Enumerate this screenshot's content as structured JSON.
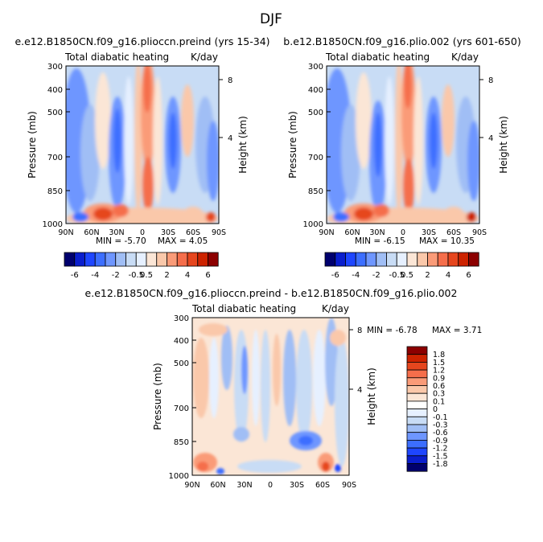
{
  "figure": {
    "title": "DJF"
  },
  "chart_data": [
    {
      "type": "heatmap",
      "title": "e.e12.B1850CN.f09_g16.plioccn.preind (yrs 15-34)",
      "field_label": "Total diabatic heating",
      "units": "K/day",
      "xlabel": "",
      "ylabel": "Pressure (mb)",
      "right_axis_label": "Height (km)",
      "x_ticks": [
        "90N",
        "60N",
        "30N",
        "0",
        "30S",
        "60S",
        "90S"
      ],
      "y_ticks": [
        "300",
        "400",
        "500",
        "700",
        "850",
        "1000"
      ],
      "right_ticks": [
        "8",
        "4"
      ],
      "xlim": [
        90,
        -90
      ],
      "ylim": [
        1000,
        300
      ],
      "min_text": "MIN = -5.70",
      "max_text": "MAX = 4.05",
      "min": -5.7,
      "max": 4.05
    },
    {
      "type": "heatmap",
      "title": "b.e12.B1850CN.f09_g16.plio.002 (yrs 601-650)",
      "field_label": "Total diabatic heating",
      "units": "K/day",
      "xlabel": "",
      "ylabel": "Pressure (mb)",
      "right_axis_label": "Height (km)",
      "x_ticks": [
        "90N",
        "60N",
        "30N",
        "0",
        "30S",
        "60S",
        "90S"
      ],
      "y_ticks": [
        "300",
        "400",
        "500",
        "700",
        "850",
        "1000"
      ],
      "right_ticks": [
        "8",
        "4"
      ],
      "xlim": [
        90,
        -90
      ],
      "ylim": [
        1000,
        300
      ],
      "min_text": "MIN = -6.15",
      "max_text": "MAX = 10.35",
      "min": -6.15,
      "max": 10.35
    },
    {
      "type": "heatmap",
      "title": "e.e12.B1850CN.f09_g16.plioccn.preind - b.e12.B1850CN.f09_g16.plio.002",
      "field_label": "Total diabatic heating",
      "units": "K/day",
      "xlabel": "",
      "ylabel": "Pressure (mb)",
      "right_axis_label": "Height (km)",
      "x_ticks": [
        "90N",
        "60N",
        "30N",
        "0",
        "30S",
        "60S",
        "90S"
      ],
      "y_ticks": [
        "300",
        "400",
        "500",
        "700",
        "850",
        "1000"
      ],
      "right_ticks": [
        "8",
        "4"
      ],
      "xlim": [
        90,
        -90
      ],
      "ylim": [
        1000,
        300
      ],
      "min_text": "MIN = -6.78",
      "max_text": "MAX = 3.71",
      "min": -6.78,
      "max": 3.71
    }
  ],
  "colorbar_top": {
    "labels": [
      "-6",
      "-4",
      "-2",
      "-0.5",
      "0.5",
      "2",
      "4",
      "6"
    ],
    "colors": [
      "#00006e",
      "#0a1ecd",
      "#1e46ff",
      "#3c6eff",
      "#6e96ff",
      "#a0bef5",
      "#c8dcf5",
      "#e6f0ff",
      "#fbe6d6",
      "#fac8aa",
      "#fa9b78",
      "#f56e4b",
      "#e6461e",
      "#cd2300",
      "#8c0000"
    ]
  },
  "colorbar_diff": {
    "labels": [
      "1.8",
      "1.5",
      "1.2",
      "0.9",
      "0.6",
      "0.3",
      "0.1",
      "0",
      "-0.1",
      "-0.3",
      "-0.6",
      "-0.9",
      "-1.2",
      "-1.5",
      "-1.8"
    ],
    "colors": [
      "#8c0000",
      "#cd2300",
      "#e6461e",
      "#f56e4b",
      "#fa9b78",
      "#fac8aa",
      "#fbe6d6",
      "#ffffff",
      "#e6f0ff",
      "#c8dcf5",
      "#a0bef5",
      "#6e96ff",
      "#3c6eff",
      "#1e46ff",
      "#0a1ecd",
      "#00006e"
    ]
  }
}
